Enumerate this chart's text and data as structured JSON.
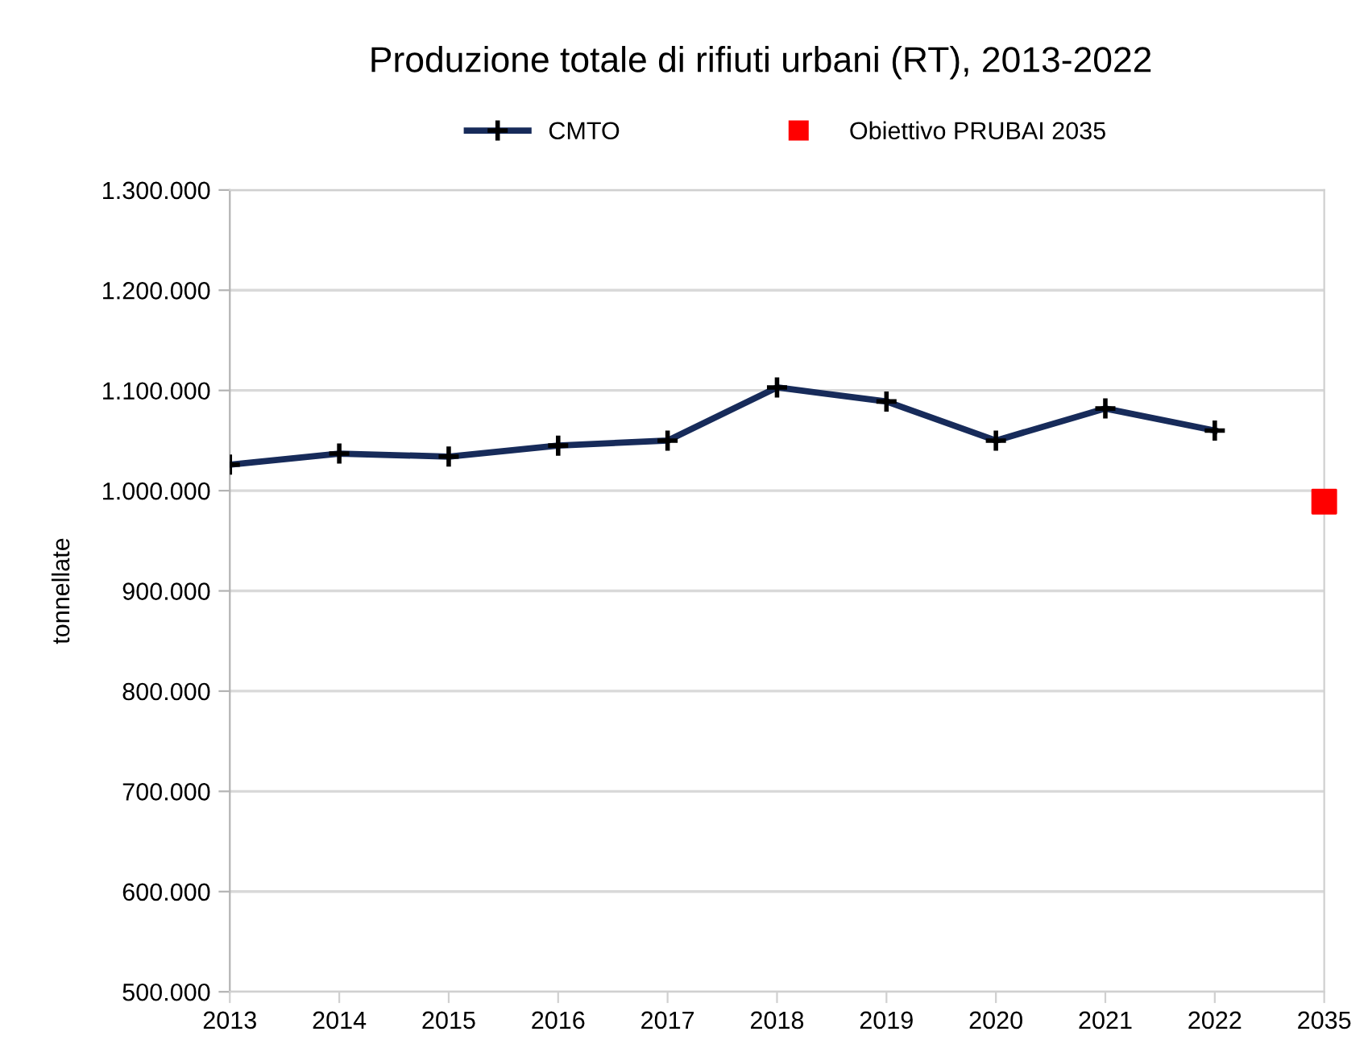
{
  "chart_data": {
    "type": "line",
    "title": "Produzione totale di rifiuti urbani (RT), 2013-2022",
    "ylabel": "tonnellate",
    "categories": [
      "2013",
      "2014",
      "2015",
      "2016",
      "2017",
      "2018",
      "2019",
      "2020",
      "2021",
      "2022",
      "2035"
    ],
    "series": [
      {
        "name": "CMTO",
        "color": "#172b5a",
        "marker": "cross",
        "values": [
          1026000,
          1037000,
          1034000,
          1045000,
          1050000,
          1103000,
          1089000,
          1050000,
          1082000,
          1060000,
          null
        ]
      },
      {
        "name": "Obiettivo PRUBAI 2035",
        "type": "scatter",
        "color": "#ff0000",
        "marker": "square",
        "values": [
          null,
          null,
          null,
          null,
          null,
          null,
          null,
          null,
          null,
          null,
          989000
        ]
      }
    ],
    "ylim": [
      500000,
      1300000
    ],
    "yticks": [
      {
        "value": 500000,
        "label": "500.000"
      },
      {
        "value": 600000,
        "label": "600.000"
      },
      {
        "value": 700000,
        "label": "700.000"
      },
      {
        "value": 800000,
        "label": "800.000"
      },
      {
        "value": 900000,
        "label": "900.000"
      },
      {
        "value": 1000000,
        "label": "1.000.000"
      },
      {
        "value": 1100000,
        "label": "1.100.000"
      },
      {
        "value": 1200000,
        "label": "1.200.000"
      },
      {
        "value": 1300000,
        "label": "1.300.000"
      }
    ],
    "grid": "y",
    "legend": "top",
    "line_style": "solid"
  }
}
